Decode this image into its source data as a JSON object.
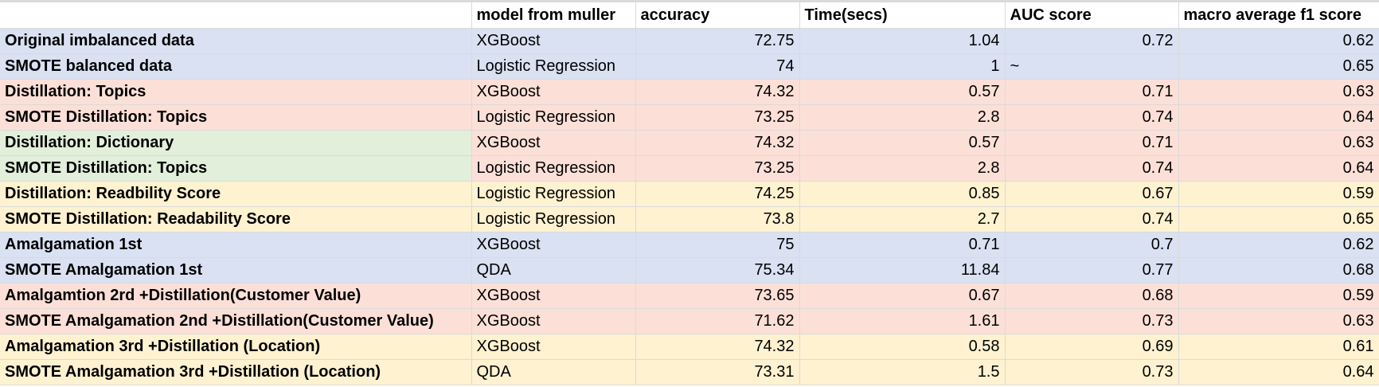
{
  "columns": {
    "label": "",
    "model": "model from muller",
    "accuracy": "accuracy",
    "time": "Time(secs)",
    "auc": "AUC score",
    "f1": "macro average f1 score"
  },
  "rows": [
    {
      "label": "Original imbalanced data",
      "model": "XGBoost",
      "accuracy": "72.75",
      "time": "1.04",
      "auc": "0.72",
      "f1": "0.62",
      "fill": "blue"
    },
    {
      "label": "SMOTE balanced data",
      "model": "Logistic Regression",
      "accuracy": "74",
      "time": "1",
      "auc": "~",
      "f1": "0.65",
      "fill": "blue"
    },
    {
      "label": "Distillation: Topics",
      "model": "XGBoost",
      "accuracy": "74.32",
      "time": "0.57",
      "auc": "0.71",
      "f1": "0.63",
      "fill": "pink"
    },
    {
      "label": "SMOTE Distillation: Topics",
      "model": "Logistic Regression",
      "accuracy": "73.25",
      "time": "2.8",
      "auc": "0.74",
      "f1": "0.64",
      "fill": "pink"
    },
    {
      "label": "Distillation: Dictionary",
      "model": "XGBoost",
      "accuracy": "74.32",
      "time": "0.57",
      "auc": "0.71",
      "f1": "0.63",
      "fill": "pink",
      "label_fill": "green"
    },
    {
      "label": "SMOTE Distillation: Topics",
      "model": "Logistic Regression",
      "accuracy": "73.25",
      "time": "2.8",
      "auc": "0.74",
      "f1": "0.64",
      "fill": "pink",
      "label_fill": "green"
    },
    {
      "label": "Distillation: Readbility Score",
      "model": "Logistic Regression",
      "accuracy": "74.25",
      "time": "0.85",
      "auc": "0.67",
      "f1": "0.59",
      "fill": "yellow"
    },
    {
      "label": "SMOTE Distillation: Readability Score",
      "model": "Logistic Regression",
      "accuracy": "73.8",
      "time": "2.7",
      "auc": "0.74",
      "f1": "0.65",
      "fill": "yellow"
    },
    {
      "label": "Amalgamation 1st",
      "model": "XGBoost",
      "accuracy": "75",
      "time": "0.71",
      "auc": "0.7",
      "f1": "0.62",
      "fill": "blue"
    },
    {
      "label": "SMOTE Amalgamation 1st",
      "model": "QDA",
      "accuracy": "75.34",
      "time": "11.84",
      "auc": "0.77",
      "f1": "0.68",
      "fill": "blue"
    },
    {
      "label": "Amalgamtion 2rd +Distillation(Customer Value)",
      "model": "XGBoost",
      "accuracy": "73.65",
      "time": "0.67",
      "auc": "0.68",
      "f1": "0.59",
      "fill": "pink"
    },
    {
      "label": "SMOTE Amalgamation 2nd +Distillation(Customer Value)",
      "model": "XGBoost",
      "accuracy": "71.62",
      "time": "1.61",
      "auc": "0.73",
      "f1": "0.63",
      "fill": "pink"
    },
    {
      "label": "Amalgamation 3rd +Distillation (Location)",
      "model": "XGBoost",
      "accuracy": "74.32",
      "time": "0.58",
      "auc": "0.69",
      "f1": "0.61",
      "fill": "yellow"
    },
    {
      "label": "SMOTE Amalgamation 3rd +Distillation (Location)",
      "model": "QDA",
      "accuracy": "73.31",
      "time": "1.5",
      "auc": "0.73",
      "f1": "0.64",
      "fill": "yellow"
    }
  ],
  "colors": {
    "blue": "#d9e1f2",
    "pink": "#fce0d8",
    "yellow": "#fef2d0",
    "green": "#e2efdb",
    "gridline": "#dadada"
  }
}
